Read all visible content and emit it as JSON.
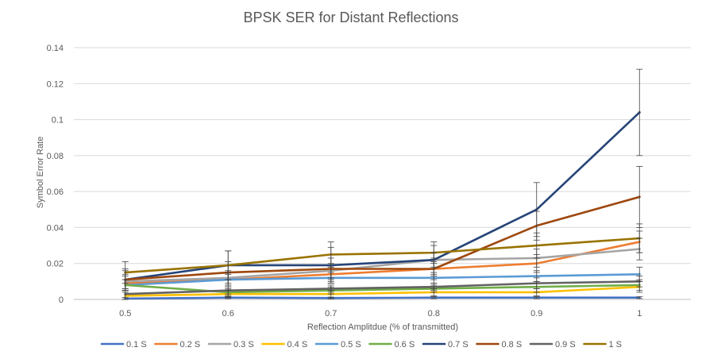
{
  "chart_data": {
    "type": "line",
    "title": "BPSK SER for Distant Reflections",
    "xlabel": "Reflection Amplitdue (% of transmitted)",
    "ylabel": "Symbol Error Rate",
    "categories": [
      "0.5",
      "0.6",
      "0.7",
      "0.8",
      "0.9",
      "1"
    ],
    "ylim": [
      0,
      0.14
    ],
    "yticks": [
      "0",
      "0.02",
      "0.04",
      "0.06",
      "0.08",
      "0.1",
      "0.12",
      "0.14"
    ],
    "grid": true,
    "legend_position": "bottom",
    "error_bars": true,
    "series": [
      {
        "name": "0.1 S",
        "color": "#4472C4",
        "values": [
          0.0005,
          0.001,
          0.0008,
          0.001,
          0.001,
          0.001
        ],
        "err": [
          0.0005,
          0.0005,
          0.0005,
          0.0005,
          0.0005,
          0.0005
        ]
      },
      {
        "name": "0.2 S",
        "color": "#ED7D31",
        "values": [
          0.009,
          0.011,
          0.014,
          0.017,
          0.02,
          0.032
        ],
        "err": [
          0.004,
          0.004,
          0.004,
          0.004,
          0.005,
          0.006
        ]
      },
      {
        "name": "0.3 S",
        "color": "#A5A5A5",
        "values": [
          0.01,
          0.012,
          0.016,
          0.022,
          0.023,
          0.028
        ],
        "err": [
          0.004,
          0.004,
          0.004,
          0.004,
          0.005,
          0.006
        ]
      },
      {
        "name": "0.4 S",
        "color": "#FFC000",
        "values": [
          0.002,
          0.003,
          0.003,
          0.004,
          0.004,
          0.007
        ],
        "err": [
          0.002,
          0.002,
          0.002,
          0.002,
          0.002,
          0.003
        ]
      },
      {
        "name": "0.5 S",
        "color": "#5B9BD5",
        "values": [
          0.008,
          0.011,
          0.012,
          0.012,
          0.013,
          0.014
        ],
        "err": [
          0.003,
          0.003,
          0.003,
          0.003,
          0.003,
          0.004
        ]
      },
      {
        "name": "0.6 S",
        "color": "#70AD47",
        "values": [
          0.008,
          0.004,
          0.005,
          0.006,
          0.007,
          0.008
        ],
        "err": [
          0.003,
          0.002,
          0.002,
          0.002,
          0.003,
          0.003
        ]
      },
      {
        "name": "0.7 S",
        "color": "#264478",
        "values": [
          0.011,
          0.019,
          0.019,
          0.022,
          0.05,
          0.104
        ],
        "err": [
          0.006,
          0.008,
          0.01,
          0.008,
          0.015,
          0.024
        ]
      },
      {
        "name": "0.8 S",
        "color": "#9E480E",
        "values": [
          0.011,
          0.015,
          0.017,
          0.017,
          0.041,
          0.057
        ],
        "err": [
          0.005,
          0.006,
          0.006,
          0.006,
          0.008,
          0.017
        ]
      },
      {
        "name": "0.9 S",
        "color": "#636363",
        "values": [
          0.003,
          0.005,
          0.006,
          0.007,
          0.009,
          0.01
        ],
        "err": [
          0.002,
          0.002,
          0.002,
          0.002,
          0.003,
          0.003
        ]
      },
      {
        "name": "1 S",
        "color": "#997300",
        "values": [
          0.015,
          0.019,
          0.025,
          0.026,
          0.03,
          0.034
        ],
        "err": [
          0.006,
          0.008,
          0.007,
          0.006,
          0.007,
          0.008
        ]
      }
    ]
  }
}
